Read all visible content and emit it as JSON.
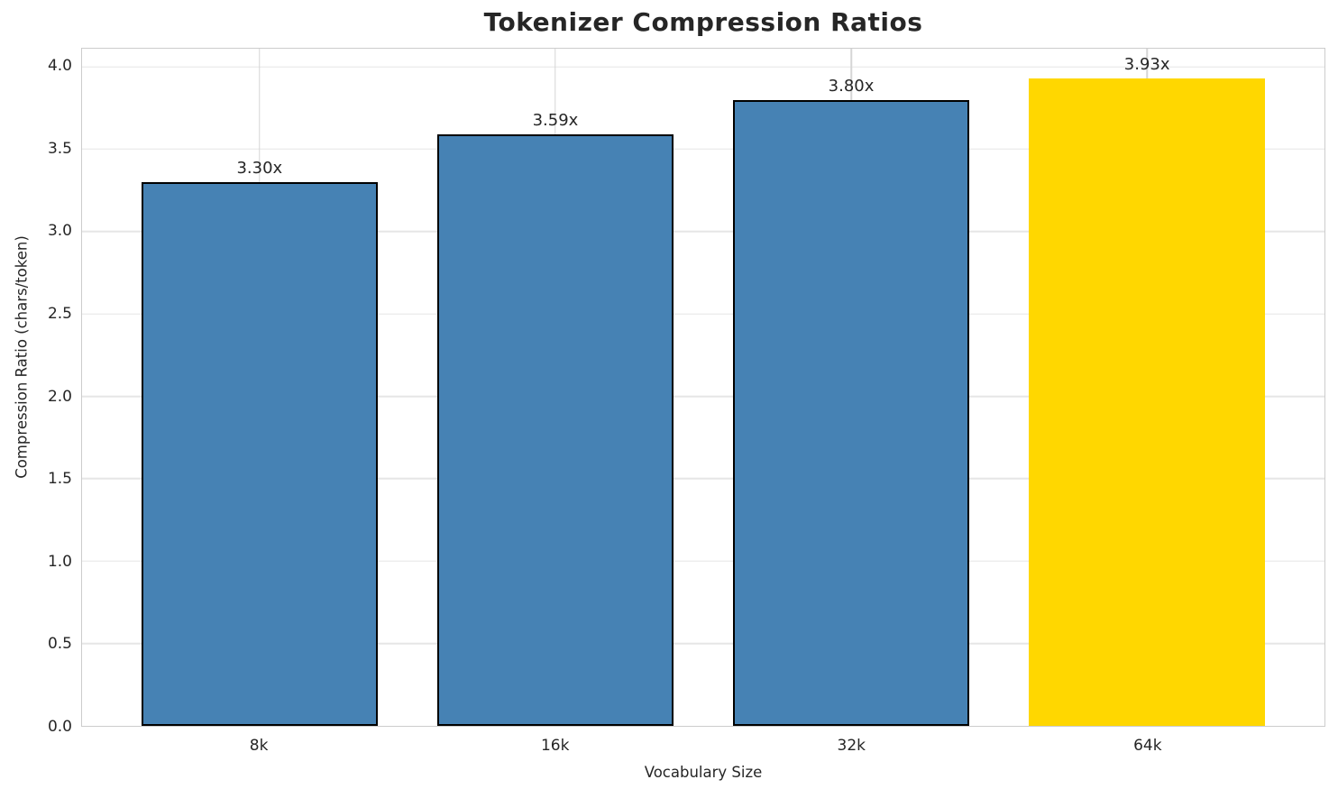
{
  "chart_data": {
    "type": "bar",
    "title": "Tokenizer Compression Ratios",
    "xlabel": "Vocabulary Size",
    "ylabel": "Compression Ratio (chars/token)",
    "categories": [
      "8k",
      "16k",
      "32k",
      "64k"
    ],
    "values": [
      3.3,
      3.59,
      3.8,
      3.93
    ],
    "bar_labels": [
      "3.30x",
      "3.59x",
      "3.80x",
      "3.93x"
    ],
    "bar_colors": [
      "#4682B4",
      "#4682B4",
      "#4682B4",
      "#FFD700"
    ],
    "bar_edge_colors": [
      "#000000",
      "#000000",
      "#000000",
      "#FFD700"
    ],
    "ylim": [
      0,
      4.11
    ],
    "yticks": [
      "0.0",
      "0.5",
      "1.0",
      "1.5",
      "2.0",
      "2.5",
      "3.0",
      "3.5",
      "4.0"
    ],
    "grid": true,
    "legend_position": "none",
    "colors": {
      "bar": "#4682B4",
      "highlight": "#FFD700",
      "bar_edge": "#000000",
      "grid_h": "#e6e6e6",
      "grid_v": "#d6d6d6",
      "spine": "#cccccc",
      "text": "#262626"
    }
  }
}
